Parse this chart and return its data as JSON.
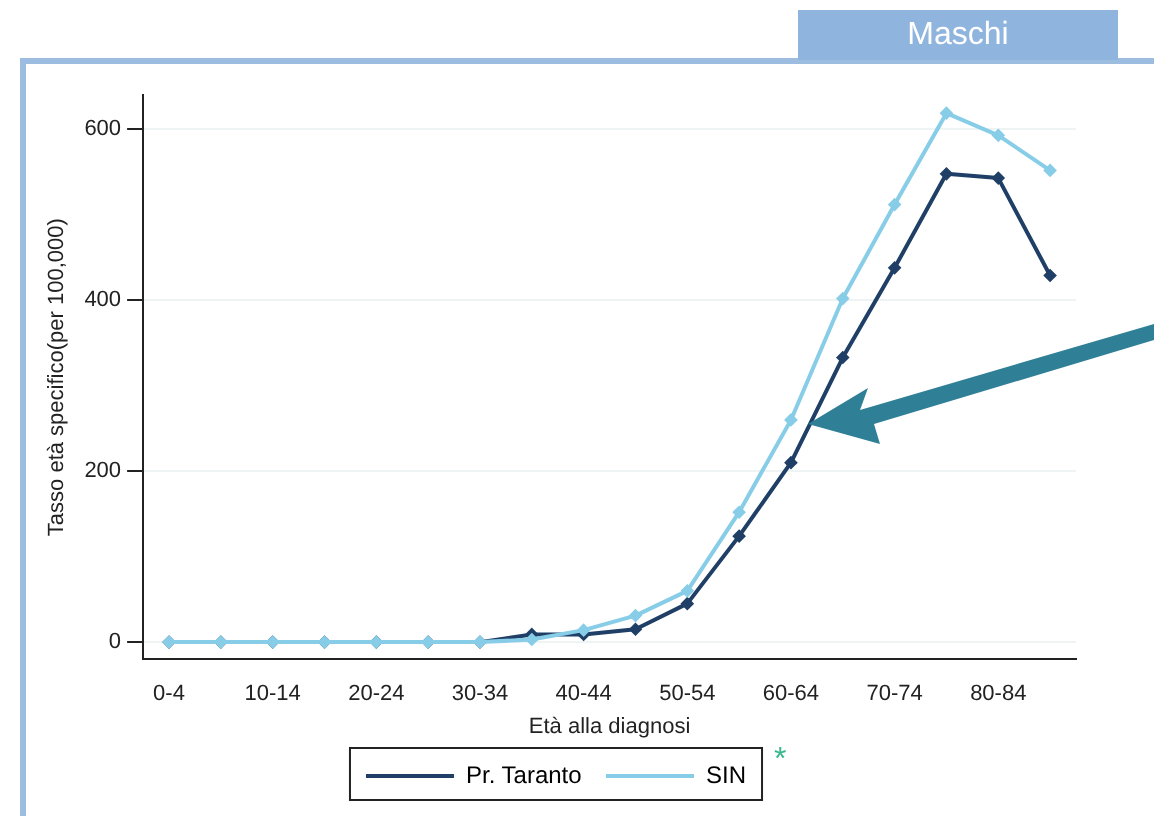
{
  "chart_data": {
    "type": "line",
    "title": "Maschi",
    "xlabel": "Età alla diagnosi",
    "ylabel": "Tasso età specifico(per 100,000)",
    "categories": [
      "0-4",
      null,
      "10-14",
      null,
      "20-24",
      null,
      "30-34",
      null,
      "40-44",
      null,
      "50-54",
      null,
      "60-64",
      null,
      "70-74",
      null,
      "80-84",
      null
    ],
    "series": [
      {
        "name": "Pr. Taranto",
        "color": "#1f3f66",
        "values": [
          0,
          0,
          0,
          0,
          0,
          0,
          0,
          9,
          9,
          15,
          45,
          124,
          210,
          333,
          438,
          548,
          543,
          429
        ]
      },
      {
        "name": "SIN",
        "color": "#87cde8",
        "values": [
          0,
          0,
          0,
          0,
          0,
          0,
          0,
          3,
          14,
          31,
          60,
          152,
          260,
          402,
          512,
          619,
          593,
          552
        ]
      }
    ],
    "ylim": [
      -20,
      640
    ],
    "yticks": [
      0,
      200,
      400,
      600
    ],
    "grid": "y",
    "legend": "bottom",
    "marker": "diamond",
    "line_style": "solid",
    "annotations": [
      "*"
    ]
  }
}
